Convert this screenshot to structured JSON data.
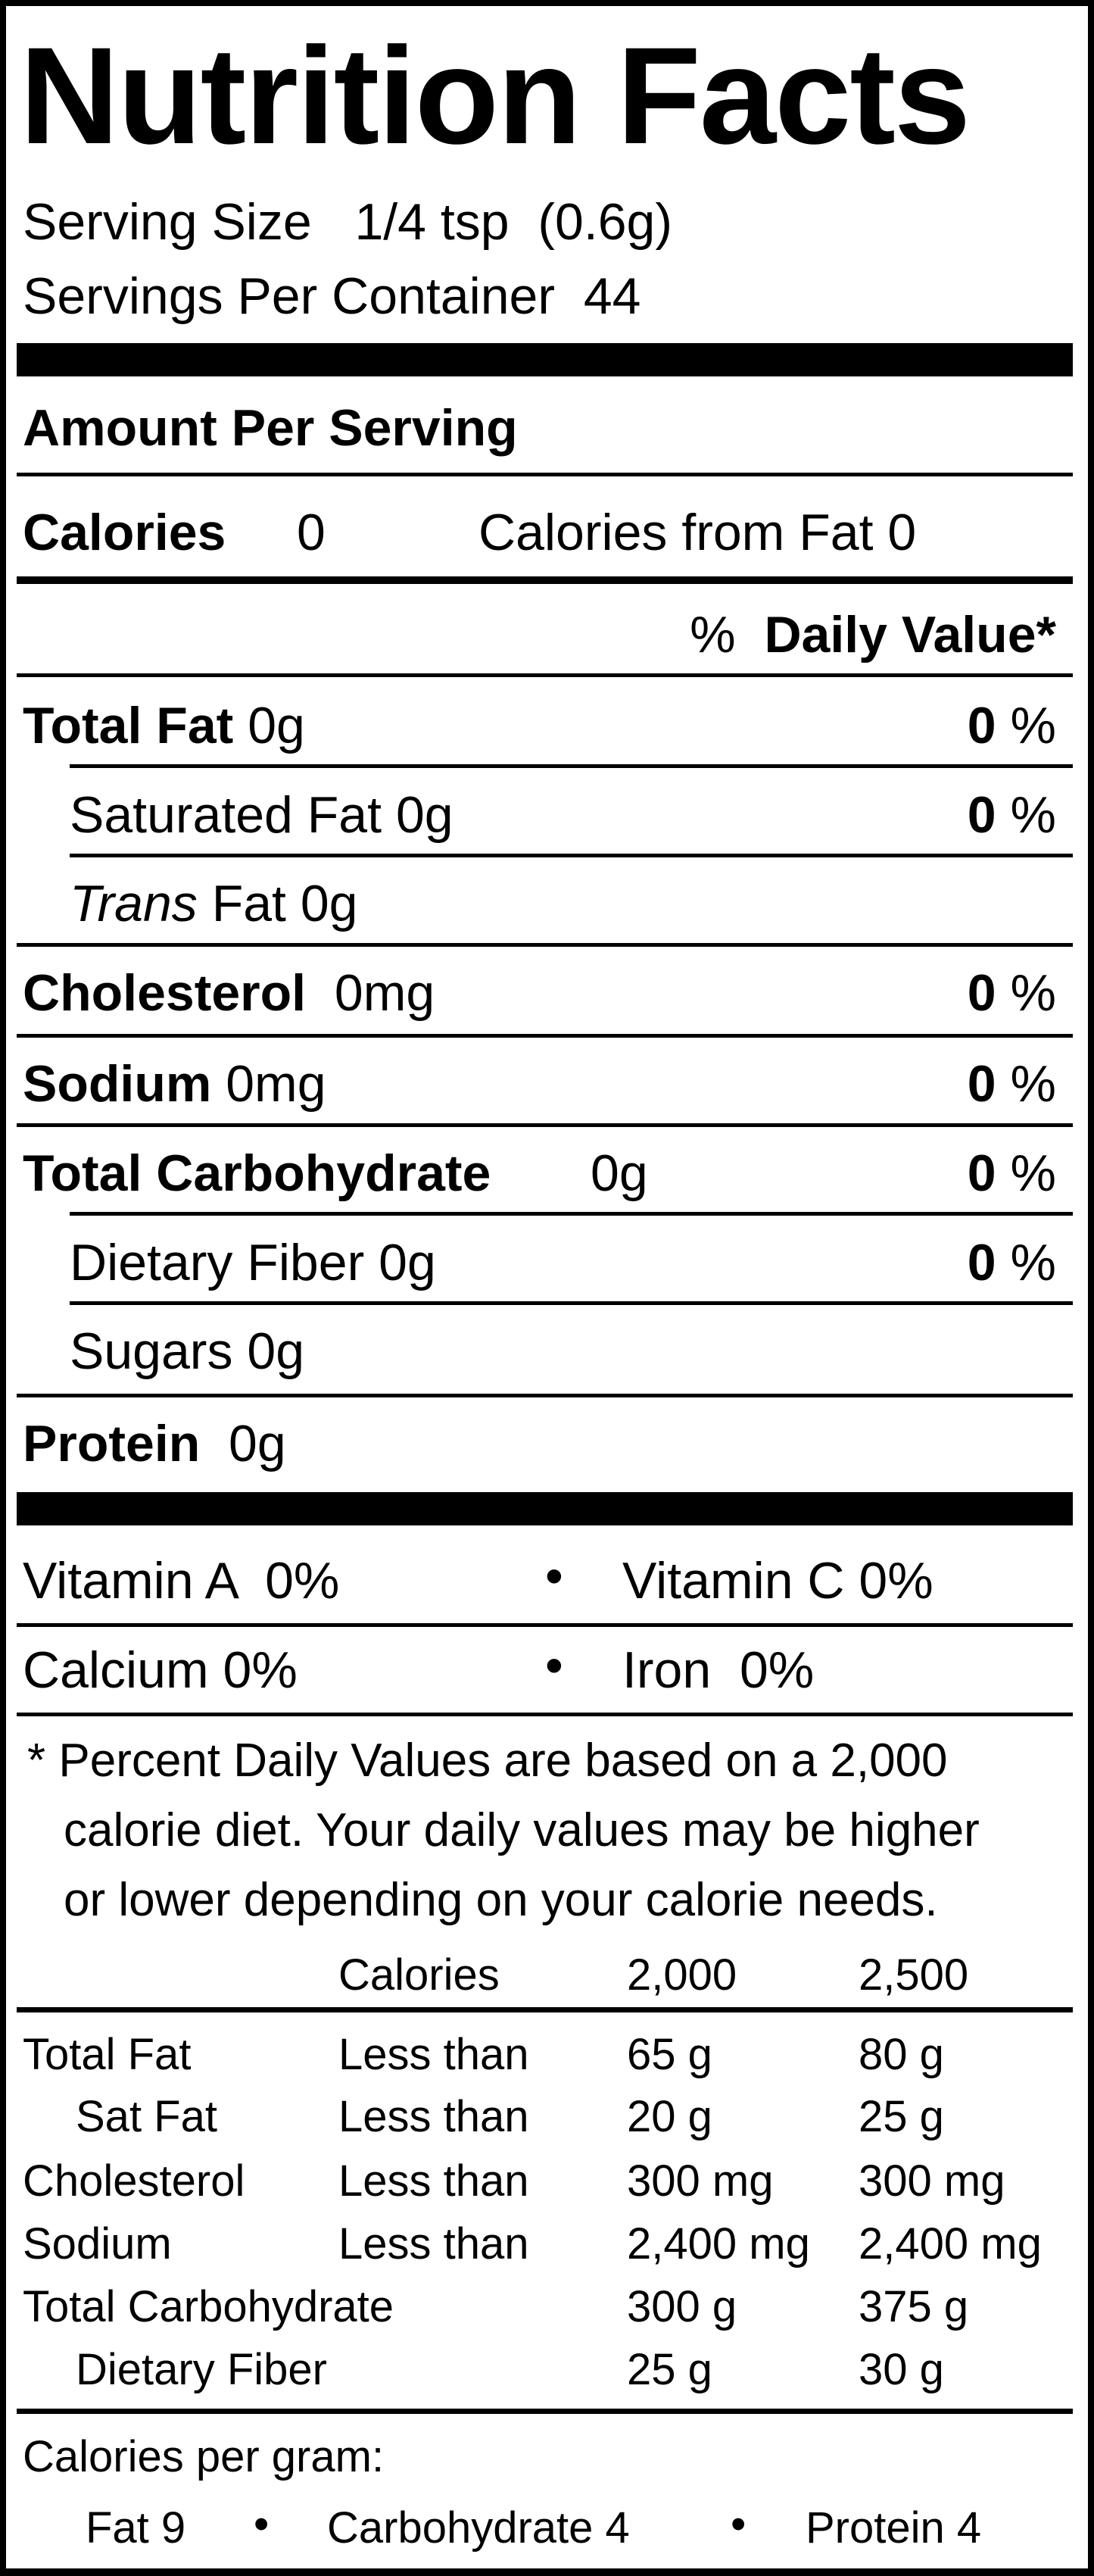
{
  "title": "Nutrition Facts",
  "serving_size": {
    "label": "Serving Size",
    "value": "1/4 tsp  (0.6g)"
  },
  "servings_per_container": {
    "label": "Servings Per Container",
    "value": "44"
  },
  "amount_per_serving": "Amount Per Serving",
  "calories": {
    "label": "Calories",
    "value": "0",
    "from_fat_label": "Calories from Fat",
    "from_fat_value": "0"
  },
  "daily_value_header": {
    "percent": "%",
    "label": "Daily Value*"
  },
  "percent_sign": "%",
  "nutrients": [
    {
      "label": "Total Fat",
      "amount": "0g",
      "dv": "0"
    },
    {
      "label": "Saturated Fat",
      "amount": "0g",
      "dv": "0"
    },
    {
      "label_italic": "Trans",
      "label": "Fat",
      "amount": "0g"
    },
    {
      "label": "Cholesterol",
      "amount": "0mg",
      "dv": "0"
    },
    {
      "label": "Sodium",
      "amount": "0mg",
      "dv": "0"
    },
    {
      "label": "Total Carbohydrate",
      "amount": "0g",
      "dv": "0"
    },
    {
      "label": "Dietary Fiber",
      "amount": "0g",
      "dv": "0"
    },
    {
      "label": "Sugars",
      "amount": "0g"
    },
    {
      "label": "Protein",
      "amount": "0g"
    }
  ],
  "vitamins": [
    {
      "label": "Vitamin A",
      "value": "0%"
    },
    {
      "label": "Vitamin C",
      "value": "0%"
    },
    {
      "label": "Calcium",
      "value": "0%"
    },
    {
      "label": "Iron",
      "value": "0%"
    }
  ],
  "bullet": "•",
  "footnote": [
    "* Percent Daily Values are based on a 2,000",
    "calorie diet. Your daily values may be higher",
    "or lower depending on your calorie needs."
  ],
  "reference_table": {
    "header": [
      "",
      "Calories",
      "2,000",
      "2,500"
    ],
    "rows": [
      [
        "Total Fat",
        "Less than",
        "65 g",
        "80 g"
      ],
      [
        "Sat Fat",
        "Less than",
        "20 g",
        "25 g"
      ],
      [
        "Cholesterol",
        "Less than",
        "300 mg",
        "300 mg"
      ],
      [
        "Sodium",
        "Less than",
        "2,400 mg",
        "2,400 mg"
      ],
      [
        "Total Carbohydrate",
        "",
        "300 g",
        "375 g"
      ],
      [
        "Dietary Fiber",
        "",
        "25 g",
        "30 g"
      ]
    ]
  },
  "calories_per_gram": {
    "label": "Calories per gram:",
    "items": [
      "Fat 9",
      "Carbohydrate 4",
      "Protein 4"
    ]
  }
}
